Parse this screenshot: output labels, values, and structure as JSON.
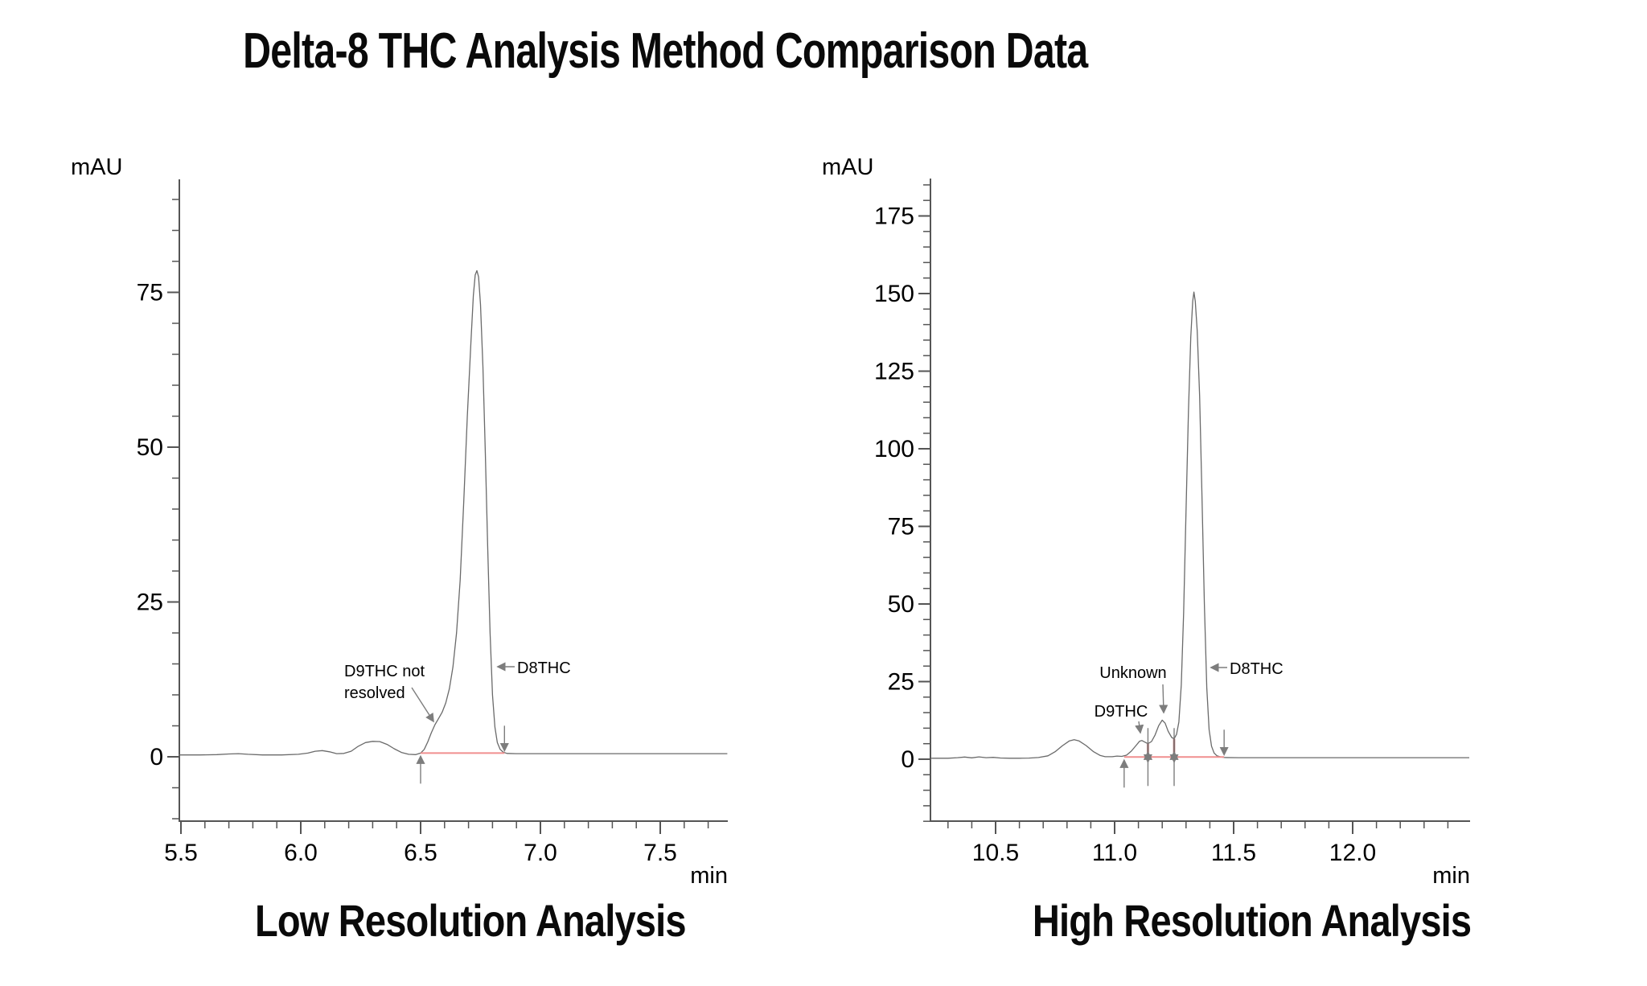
{
  "page_title": "Delta-8 THC Analysis Method Comparison Data",
  "colors": {
    "background": "#ffffff",
    "text": "#000000",
    "axis": "#555555",
    "trace": "#6a6a6a",
    "integration_baseline": "#f08f8f",
    "peak_separator": "#9e4b4b",
    "marker_arrow": "#7d7d7d"
  },
  "chart_data": [
    {
      "type": "line",
      "title": "Low Resolution Analysis",
      "xlabel": "min",
      "ylabel": "mAU",
      "xlim": [
        5.49,
        7.78
      ],
      "axis_ylim": [
        -13,
        93
      ],
      "x_major_ticks": [
        5.5,
        6.0,
        6.5,
        7.0,
        7.5
      ],
      "x_minor_step": 0.1,
      "x_minor_range": [
        5.5,
        7.7
      ],
      "y_major_ticks": [
        0,
        25,
        50,
        75
      ],
      "y_minor_step": 5,
      "y_minor_range": [
        -10,
        90
      ],
      "grid": false,
      "legend": false,
      "annotations": {
        "d9_note_line1": "D9THC not",
        "d9_note_line2": "resolved",
        "d8_label": "D8THC"
      },
      "peaks": [
        {
          "name": "D8THC",
          "retention_min": 6.73,
          "height_mAU": 78.5
        },
        {
          "name": "D9THC",
          "note": "not resolved, shoulder at ~6.55 min"
        }
      ],
      "integration": {
        "start_min": 6.5,
        "end_min": 6.85,
        "baseline_mAU": 0.6,
        "separators": []
      },
      "trace": [
        [
          5.49,
          0.3
        ],
        [
          5.58,
          0.3
        ],
        [
          5.65,
          0.35
        ],
        [
          5.7,
          0.45
        ],
        [
          5.74,
          0.5
        ],
        [
          5.78,
          0.4
        ],
        [
          5.84,
          0.3
        ],
        [
          5.92,
          0.3
        ],
        [
          5.99,
          0.4
        ],
        [
          6.03,
          0.6
        ],
        [
          6.06,
          0.9
        ],
        [
          6.09,
          1.0
        ],
        [
          6.12,
          0.8
        ],
        [
          6.15,
          0.5
        ],
        [
          6.18,
          0.55
        ],
        [
          6.21,
          0.9
        ],
        [
          6.24,
          1.7
        ],
        [
          6.27,
          2.3
        ],
        [
          6.3,
          2.5
        ],
        [
          6.33,
          2.45
        ],
        [
          6.36,
          2.0
        ],
        [
          6.39,
          1.3
        ],
        [
          6.42,
          0.7
        ],
        [
          6.45,
          0.4
        ],
        [
          6.48,
          0.35
        ],
        [
          6.5,
          0.6
        ],
        [
          6.515,
          1.2
        ],
        [
          6.53,
          2.4
        ],
        [
          6.545,
          3.9
        ],
        [
          6.56,
          5.2
        ],
        [
          6.575,
          6.2
        ],
        [
          6.59,
          7.2
        ],
        [
          6.605,
          8.7
        ],
        [
          6.62,
          11
        ],
        [
          6.635,
          14.5
        ],
        [
          6.65,
          20
        ],
        [
          6.665,
          28.5
        ],
        [
          6.68,
          41
        ],
        [
          6.695,
          55
        ],
        [
          6.71,
          67
        ],
        [
          6.72,
          74.5
        ],
        [
          6.728,
          77.8
        ],
        [
          6.735,
          78.5
        ],
        [
          6.742,
          77.5
        ],
        [
          6.75,
          73
        ],
        [
          6.76,
          63
        ],
        [
          6.77,
          49
        ],
        [
          6.78,
          34
        ],
        [
          6.79,
          20
        ],
        [
          6.8,
          10
        ],
        [
          6.81,
          4.8
        ],
        [
          6.82,
          2.3
        ],
        [
          6.832,
          1.2
        ],
        [
          6.845,
          0.75
        ],
        [
          6.86,
          0.55
        ],
        [
          6.9,
          0.5
        ],
        [
          7.0,
          0.5
        ],
        [
          7.15,
          0.5
        ],
        [
          7.3,
          0.5
        ],
        [
          7.5,
          0.5
        ],
        [
          7.65,
          0.5
        ],
        [
          7.78,
          0.5
        ]
      ]
    },
    {
      "type": "line",
      "title": "High Resolution Analysis",
      "xlabel": "min",
      "ylabel": "mAU",
      "xlim": [
        10.23,
        12.49
      ],
      "axis_ylim": [
        -21,
        187
      ],
      "x_major_ticks": [
        10.5,
        11.0,
        11.5,
        12.0
      ],
      "x_minor_step": 0.1,
      "x_minor_range": [
        10.3,
        12.4
      ],
      "y_major_ticks": [
        0,
        25,
        50,
        75,
        100,
        125,
        150,
        175
      ],
      "y_minor_step": 5,
      "y_minor_range": [
        -20,
        185
      ],
      "grid": false,
      "legend": false,
      "annotations": {
        "d9_label": "D9THC",
        "unknown_label": "Unknown",
        "d8_label": "D8THC"
      },
      "peaks": [
        {
          "name": "D9THC",
          "retention_min": 11.11,
          "height_mAU": 6.0
        },
        {
          "name": "Unknown",
          "retention_min": 11.2,
          "height_mAU": 12.6
        },
        {
          "name": "D8THC",
          "retention_min": 11.33,
          "height_mAU": 150.5
        }
      ],
      "integration": {
        "start_min": 11.04,
        "end_min": 11.46,
        "baseline_mAU": 0.7,
        "separators": [
          {
            "time_min": 11.14,
            "valley_mAU": 5.0
          },
          {
            "time_min": 11.25,
            "valley_mAU": 6.6
          }
        ]
      },
      "trace": [
        [
          10.23,
          0.3
        ],
        [
          10.3,
          0.3
        ],
        [
          10.34,
          0.5
        ],
        [
          10.37,
          0.7
        ],
        [
          10.4,
          0.45
        ],
        [
          10.43,
          0.75
        ],
        [
          10.46,
          0.5
        ],
        [
          10.49,
          0.6
        ],
        [
          10.52,
          0.4
        ],
        [
          10.56,
          0.3
        ],
        [
          10.6,
          0.3
        ],
        [
          10.64,
          0.35
        ],
        [
          10.68,
          0.55
        ],
        [
          10.72,
          1.1
        ],
        [
          10.75,
          2.4
        ],
        [
          10.78,
          4.3
        ],
        [
          10.81,
          5.9
        ],
        [
          10.83,
          6.3
        ],
        [
          10.85,
          5.9
        ],
        [
          10.88,
          4.4
        ],
        [
          10.91,
          2.5
        ],
        [
          10.94,
          1.2
        ],
        [
          10.96,
          0.8
        ],
        [
          10.99,
          0.8
        ],
        [
          11.01,
          1.0
        ],
        [
          11.03,
          0.9
        ],
        [
          11.05,
          1.3
        ],
        [
          11.07,
          2.6
        ],
        [
          11.09,
          4.4
        ],
        [
          11.105,
          5.8
        ],
        [
          11.115,
          6.0
        ],
        [
          11.125,
          5.6
        ],
        [
          11.14,
          5.0
        ],
        [
          11.155,
          5.7
        ],
        [
          11.17,
          7.8
        ],
        [
          11.185,
          10.8
        ],
        [
          11.2,
          12.6
        ],
        [
          11.212,
          11.6
        ],
        [
          11.225,
          9.0
        ],
        [
          11.24,
          7.0
        ],
        [
          11.25,
          6.6
        ],
        [
          11.26,
          8.0
        ],
        [
          11.27,
          12
        ],
        [
          11.28,
          24
        ],
        [
          11.29,
          47
        ],
        [
          11.3,
          80
        ],
        [
          11.31,
          112
        ],
        [
          11.32,
          136
        ],
        [
          11.328,
          147.5
        ],
        [
          11.333,
          150.5
        ],
        [
          11.339,
          147.5
        ],
        [
          11.347,
          138
        ],
        [
          11.357,
          117
        ],
        [
          11.367,
          85
        ],
        [
          11.377,
          50
        ],
        [
          11.387,
          23
        ],
        [
          11.397,
          9.5
        ],
        [
          11.407,
          4.2
        ],
        [
          11.418,
          2.0
        ],
        [
          11.43,
          1.1
        ],
        [
          11.445,
          0.75
        ],
        [
          11.46,
          0.55
        ],
        [
          11.52,
          0.5
        ],
        [
          11.65,
          0.5
        ],
        [
          11.85,
          0.5
        ],
        [
          12.05,
          0.5
        ],
        [
          12.25,
          0.5
        ],
        [
          12.49,
          0.5
        ]
      ]
    }
  ]
}
